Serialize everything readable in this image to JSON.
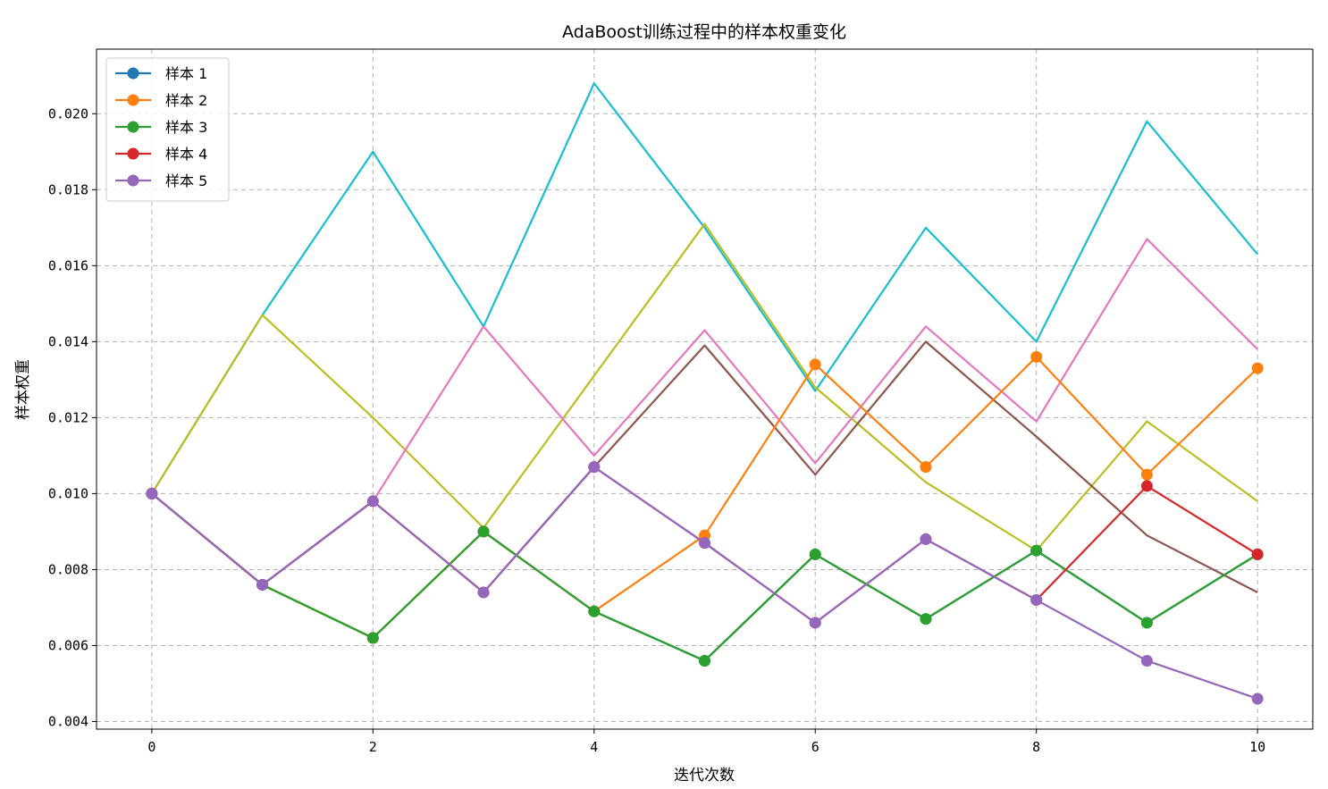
{
  "chart_data": {
    "type": "line",
    "title": "AdaBoost训练过程中的样本权重变化",
    "xlabel": "迭代次数",
    "ylabel": "样本权重",
    "xlim": [
      -0.5,
      10.5
    ],
    "ylim": [
      0.0038,
      0.0217
    ],
    "xticks": [
      0,
      2,
      4,
      6,
      8,
      10
    ],
    "yticks": [
      0.004,
      0.006,
      0.008,
      0.01,
      0.012,
      0.014,
      0.016,
      0.018,
      0.02
    ],
    "ytick_labels": [
      "0.004",
      "0.006",
      "0.008",
      "0.010",
      "0.012",
      "0.014",
      "0.016",
      "0.018",
      "0.020"
    ],
    "grid": true,
    "legend_position": "top-left",
    "x": [
      0,
      1,
      2,
      3,
      4,
      5,
      6,
      7,
      8,
      9,
      10
    ],
    "series": [
      {
        "name": "",
        "color": "#17becf",
        "marker": false,
        "values": [
          0.01,
          0.0147,
          0.019,
          0.0144,
          0.0208,
          0.017,
          0.0127,
          0.017,
          0.014,
          0.0198,
          0.0163
        ]
      },
      {
        "name": "",
        "color": "#bcbd22",
        "marker": false,
        "values": [
          0.01,
          0.0147,
          0.012,
          0.0091,
          0.0131,
          0.0171,
          0.0128,
          0.0103,
          0.0085,
          0.0119,
          0.0098
        ]
      },
      {
        "name": "",
        "color": "#e377c2",
        "marker": false,
        "values": [
          0.01,
          0.0076,
          0.0098,
          0.0144,
          0.011,
          0.0143,
          0.0108,
          0.0144,
          0.0119,
          0.0167,
          0.0138
        ]
      },
      {
        "name": "",
        "color": "#8c564b",
        "marker": false,
        "values": [
          0.01,
          0.0076,
          0.0098,
          0.0074,
          0.0107,
          0.0139,
          0.0105,
          0.014,
          0.0115,
          0.0089,
          0.0074
        ]
      },
      {
        "name": "",
        "color": "#7f7f7f",
        "marker": false,
        "values": [
          0.01,
          0.0076,
          0.0062,
          0.009,
          0.0069,
          0.0056,
          0.0084,
          0.0067,
          0.0085,
          0.0066,
          0.0084
        ]
      },
      {
        "name": "样本 1",
        "color": "#1f77b4",
        "marker": true,
        "values": [
          0.01,
          0.0076,
          0.0062,
          0.009,
          0.0069,
          0.0056,
          0.0084,
          0.0067,
          0.0085,
          0.0066,
          0.0084
        ]
      },
      {
        "name": "样本 2",
        "color": "#ff7f0e",
        "marker": true,
        "values": [
          0.01,
          0.0076,
          0.0062,
          0.009,
          0.0069,
          0.0089,
          0.0134,
          0.0107,
          0.0136,
          0.0105,
          0.0133
        ]
      },
      {
        "name": "样本 3",
        "color": "#2ca02c",
        "marker": true,
        "values": [
          0.01,
          0.0076,
          0.0062,
          0.009,
          0.0069,
          0.0056,
          0.0084,
          0.0067,
          0.0085,
          0.0066,
          0.0084
        ]
      },
      {
        "name": "样本 4",
        "color": "#d62728",
        "marker": true,
        "values": [
          0.01,
          0.0076,
          0.0098,
          0.0074,
          0.0107,
          0.0087,
          0.0066,
          0.0088,
          0.0072,
          0.0102,
          0.0084
        ]
      },
      {
        "name": "样本 5",
        "color": "#9467bd",
        "marker": true,
        "values": [
          0.01,
          0.0076,
          0.0098,
          0.0074,
          0.0107,
          0.0087,
          0.0066,
          0.0088,
          0.0072,
          0.0056,
          0.0046
        ]
      }
    ]
  }
}
